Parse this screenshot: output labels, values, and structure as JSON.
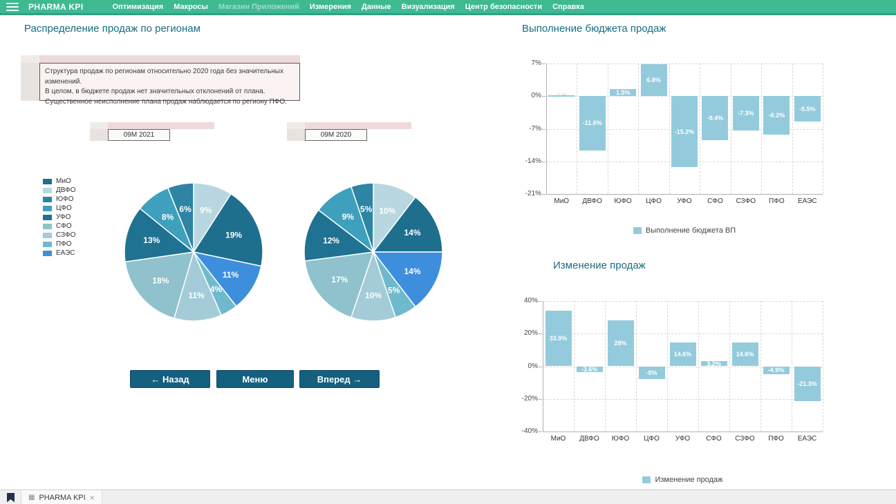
{
  "header": {
    "brand": "PHARMA KPI",
    "menu": [
      {
        "label": "Оптимизация",
        "enabled": true
      },
      {
        "label": "Макросы",
        "enabled": true
      },
      {
        "label": "Магазин Приложений",
        "enabled": false
      },
      {
        "label": "Измерения",
        "enabled": true
      },
      {
        "label": "Данные",
        "enabled": true
      },
      {
        "label": "Визуализация",
        "enabled": true
      },
      {
        "label": "Центр безопасности",
        "enabled": true
      },
      {
        "label": "Справка",
        "enabled": true
      }
    ]
  },
  "left": {
    "title": "Распределение продаж по регионам",
    "annotation": {
      "lines": [
        "Структура продаж по регионам относительно 2020 года без значительных изменений.",
        "В целом, в бюджете продаж нет значительных отклонений от плана.",
        "Существенное неисполнение плана продаж наблюдается по региону ПФО."
      ]
    },
    "regions": [
      "МиО",
      "ДВФО",
      "ЮФО",
      "ЦФО",
      "УФО",
      "СФО",
      "СЗФО",
      "ПФО",
      "ЕАЭС"
    ],
    "buttons": [
      "← Назад",
      "Меню",
      "Вперед →"
    ]
  },
  "colors": {
    "header_green": "#3eb990",
    "header_strip": "#2fa085",
    "title_teal": "#196b80",
    "bar_fill": "#93cbdd",
    "button_bg": "#15607e",
    "regions": {
      "МиО": "#1e6f8e",
      "ДВФО": "#b9d7e0",
      "ЮФО": "#2d84a3",
      "ЦФО": "#3fa0bd",
      "УФО": "#1f7291",
      "СФО": "#8fc2cc",
      "СЗФО": "#a4cbd8",
      "ПФО": "#6fb9cc",
      "ЕАЭС": "#3e8ede"
    }
  },
  "chart_data": [
    {
      "type": "pie",
      "title": "09M 2021",
      "labels": [
        "МиО",
        "ДВФО",
        "ЮФО",
        "ЦФО",
        "УФО",
        "СФО",
        "СЗФО",
        "ПФО",
        "ЕАЭС"
      ],
      "values": [
        19,
        9,
        6,
        8,
        13,
        18,
        11,
        4,
        11
      ],
      "unit": "%",
      "draw_order": [
        "ДВФО",
        "МиО",
        "ЕАЭС",
        "ПФО",
        "СЗФО",
        "СФО",
        "УФО",
        "ЦФО",
        "ЮФО"
      ]
    },
    {
      "type": "pie",
      "title": "09M 2020",
      "labels": [
        "МиО",
        "ДВФО",
        "ЮФО",
        "ЦФО",
        "УФО",
        "СФО",
        "СЗФО",
        "ПФО",
        "ЕАЭС"
      ],
      "values": [
        14,
        10,
        5,
        9,
        12,
        17,
        10,
        5,
        14
      ],
      "unit": "%",
      "draw_order": [
        "ДВФО",
        "МиО",
        "ЕАЭС",
        "ПФО",
        "СЗФО",
        "СФО",
        "УФО",
        "ЦФО",
        "ЮФО"
      ]
    },
    {
      "type": "bar",
      "title": "Выполнение бюджета продаж",
      "categories": [
        "МиО",
        "ДВФО",
        "ЮФО",
        "ЦФО",
        "УФО",
        "СФО",
        "СЗФО",
        "ПФО",
        "ЕАЭС"
      ],
      "values": [
        -0.2,
        -11.6,
        1.5,
        6.8,
        -15.2,
        -9.4,
        -7.3,
        -8.2,
        -5.5
      ],
      "value_labels": [
        "-0.2%",
        "-11.6%",
        "1.5%",
        "6.8%",
        "-15.2%",
        "-9.4%",
        "-7.3%",
        "-8.2%",
        "-5.5%"
      ],
      "ylim": [
        -21,
        7
      ],
      "yticks": [
        "7%",
        "0%",
        "-7%",
        "-14%",
        "-21%"
      ],
      "grid": true,
      "legend": "Выполнение бюджета ВП",
      "legend_position": "bottom"
    },
    {
      "type": "bar",
      "title": "Изменение продаж",
      "categories": [
        "МиО",
        "ДВФО",
        "ЮФО",
        "ЦФО",
        "УФО",
        "СФО",
        "СЗФО",
        "ПФО",
        "ЕАЭС"
      ],
      "values": [
        33.9,
        -3.6,
        28,
        -8,
        14.6,
        3.2,
        14.6,
        -4.9,
        -21.3
      ],
      "value_labels": [
        "33.9%",
        "-3.6%",
        "28%",
        "-8%",
        "14.6%",
        "3.2%",
        "14.6%",
        "-4.9%",
        "-21.3%"
      ],
      "ylim": [
        -40,
        40
      ],
      "yticks": [
        "40%",
        "20%",
        "0%",
        "-20%",
        "-40%"
      ],
      "grid": true,
      "legend": "Изменение продаж",
      "legend_position": "bottom"
    }
  ],
  "footer": {
    "tab_label": "PHARMA KPI",
    "close_label": "×"
  }
}
